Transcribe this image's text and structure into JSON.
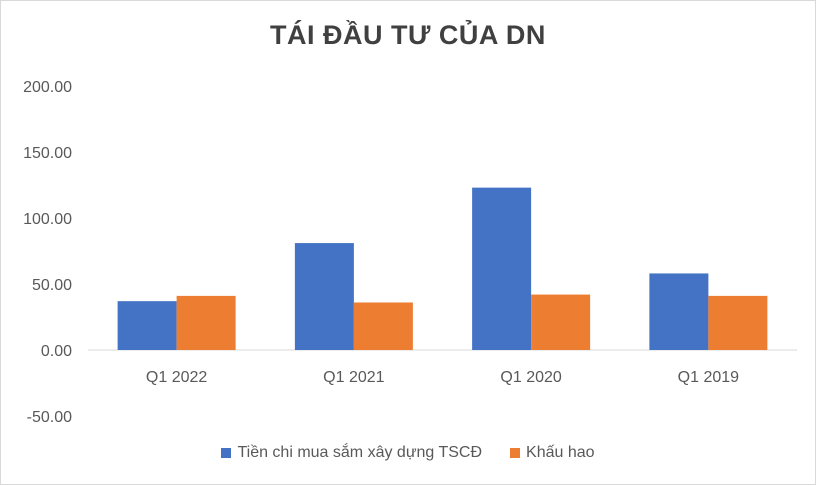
{
  "chart_data": {
    "type": "bar",
    "title": "TÁI ĐẦU TƯ CỦA DN",
    "categories": [
      "Q1 2022",
      "Q1 2021",
      "Q1 2020",
      "Q1 2019"
    ],
    "series": [
      {
        "name": "Tiền chi mua sắm xây dựng TSCĐ",
        "values": [
          37,
          81,
          123,
          58
        ],
        "color": "#4472c4"
      },
      {
        "name": "Khấu hao",
        "values": [
          41,
          36,
          42,
          41
        ],
        "color": "#ed7d31"
      }
    ],
    "ylim": [
      -50,
      200
    ],
    "yticks": [
      "200.00",
      "150.00",
      "100.00",
      "50.00",
      "0.00",
      "-50.00"
    ],
    "ytick_values": [
      200,
      150,
      100,
      50,
      0,
      -50
    ],
    "grid": false,
    "legend": "bottom"
  }
}
